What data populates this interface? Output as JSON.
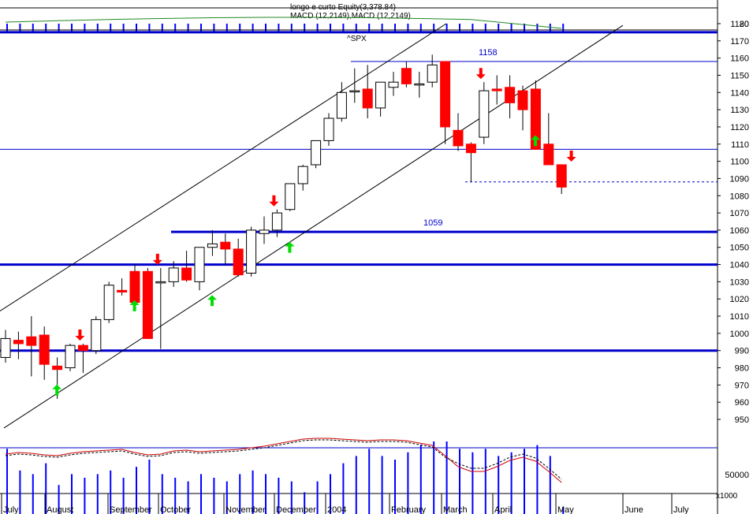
{
  "header": {
    "equity_label": "longo e curto Equity(3,378.84)",
    "macd_label": "MACD (12,2149),MACD (12,2149)",
    "symbol": "^SPX"
  },
  "colors": {
    "up": "#ffffff",
    "down": "#ff0000",
    "level_line": "#0000cc",
    "thin_line": "#0000cc",
    "trend_line": "#000000",
    "arrow_buy": "#00dd00",
    "arrow_sell": "#ff0000",
    "volume": "#0000ff",
    "macd": "#cc0000",
    "signal": "#000000",
    "equity": "#228822"
  },
  "chart_data": {
    "type": "candlestick",
    "title": "^SPX",
    "y_ticks": [
      950,
      960,
      970,
      980,
      990,
      1000,
      1010,
      1020,
      1030,
      1040,
      1050,
      1060,
      1070,
      1080,
      1090,
      1100,
      1110,
      1120,
      1130,
      1140,
      1150,
      1160,
      1170,
      1180
    ],
    "y_range": [
      940,
      1186
    ],
    "x_labels": [
      "July",
      "August",
      "September",
      "October",
      "November",
      "December",
      "2004",
      "February",
      "March",
      "April",
      "May",
      "June",
      "July"
    ],
    "weeks": [
      "2003-07-18",
      "2003-07-25",
      "2003-08-01",
      "2003-08-08",
      "2003-08-15",
      "2003-08-22",
      "2003-08-29",
      "2003-09-05",
      "2003-09-12",
      "2003-09-19",
      "2003-09-26",
      "2003-10-03",
      "2003-10-10",
      "2003-10-17",
      "2003-10-24",
      "2003-10-31",
      "2003-11-07",
      "2003-11-14",
      "2003-11-21",
      "2003-11-28",
      "2003-12-05",
      "2003-12-12",
      "2003-12-19",
      "2003-12-26",
      "2004-01-02",
      "2004-01-09",
      "2004-01-16",
      "2004-01-23",
      "2004-01-30",
      "2004-02-06",
      "2004-02-13",
      "2004-02-20",
      "2004-02-27",
      "2004-03-05",
      "2004-03-12",
      "2004-03-19",
      "2004-03-26",
      "2004-04-02",
      "2004-04-08",
      "2004-04-16",
      "2004-04-23",
      "2004-04-30",
      "2004-05-07",
      "2004-05-14"
    ],
    "ohlc": [
      [
        986,
        1002,
        983,
        997
      ],
      [
        996,
        1001,
        985,
        994
      ],
      [
        998,
        1010,
        975,
        993
      ],
      [
        999,
        1004,
        973,
        982
      ],
      [
        981,
        986,
        962,
        979
      ],
      [
        980,
        994,
        978,
        993
      ],
      [
        993,
        994,
        977,
        990
      ],
      [
        990,
        1010,
        988,
        1008
      ],
      [
        1008,
        1030,
        1006,
        1028
      ],
      [
        1025,
        1032,
        1022,
        1024
      ],
      [
        1036,
        1040,
        1020,
        1018
      ],
      [
        1036,
        1038,
        997,
        997
      ],
      [
        1030,
        1038,
        991,
        1030
      ],
      [
        1030,
        1042,
        1027,
        1038
      ],
      [
        1038,
        1048,
        1030,
        1031
      ],
      [
        1030,
        1050,
        1025,
        1050
      ],
      [
        1050,
        1060,
        1045,
        1052
      ],
      [
        1053,
        1058,
        1040,
        1049
      ],
      [
        1049,
        1055,
        1033,
        1034
      ],
      [
        1035,
        1062,
        1033,
        1060
      ],
      [
        1058,
        1068,
        1052,
        1060
      ],
      [
        1060,
        1072,
        1056,
        1070
      ],
      [
        1072,
        1087,
        1071,
        1087
      ],
      [
        1087,
        1098,
        1083,
        1097
      ],
      [
        1098,
        1112,
        1096,
        1112
      ],
      [
        1112,
        1128,
        1109,
        1125
      ],
      [
        1125,
        1146,
        1123,
        1140
      ],
      [
        1141,
        1154,
        1134,
        1141
      ],
      [
        1142,
        1156,
        1125,
        1131
      ],
      [
        1131,
        1146,
        1126,
        1146
      ],
      [
        1143,
        1152,
        1138,
        1146
      ],
      [
        1154,
        1158,
        1143,
        1145
      ],
      [
        1145,
        1152,
        1137,
        1145
      ],
      [
        1146,
        1162,
        1143,
        1156
      ],
      [
        1158,
        1158,
        1110,
        1120
      ],
      [
        1118,
        1128,
        1106,
        1109
      ],
      [
        1110,
        1111,
        1088,
        1105
      ],
      [
        1114,
        1146,
        1110,
        1141
      ],
      [
        1142,
        1150,
        1133,
        1141
      ],
      [
        1143,
        1150,
        1125,
        1134
      ],
      [
        1141,
        1144,
        1118,
        1130
      ],
      [
        1142,
        1147,
        1107,
        1107
      ],
      [
        1110,
        1128,
        1098,
        1098
      ],
      [
        1098,
        1098,
        1081,
        1085
      ]
    ],
    "horizontal_levels": [
      1175,
      1059,
      1040,
      990
    ],
    "level_labels": [
      {
        "value": 1158,
        "text": "1158"
      },
      {
        "value": 1059,
        "text": "1059"
      }
    ],
    "thin_levels": [
      1158,
      1107
    ],
    "dashed_level": 1088,
    "buy_signals": [
      3,
      9,
      15,
      21,
      40
    ],
    "sell_signals": [
      6,
      12,
      21,
      37,
      44
    ],
    "volume_ticks": [
      "50000"
    ],
    "volume_unit": "x1000",
    "equity_ticks": [
      "20"
    ]
  }
}
